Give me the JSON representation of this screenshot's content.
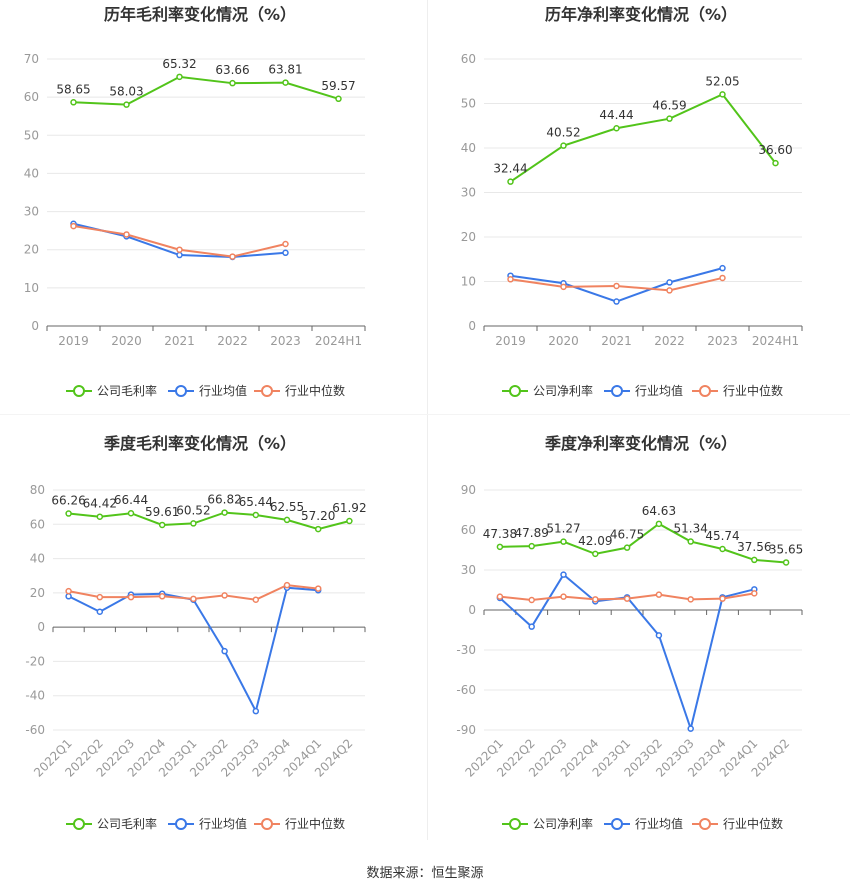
{
  "source": "数据来源：恒生聚源",
  "colors": {
    "company": "#52c41a",
    "avg": "#3a78e7",
    "median": "#f08360",
    "grid": "#e8e8e8",
    "axis": "#666666",
    "tick": "#999999"
  },
  "chart_data": [
    {
      "type": "line",
      "title": "历年毛利率变化情况（%）",
      "categories": [
        "2019",
        "2020",
        "2021",
        "2022",
        "2023",
        "2024H1"
      ],
      "ylim": [
        0,
        70
      ],
      "yticks": [
        0,
        10,
        20,
        30,
        40,
        50,
        60,
        70
      ],
      "legend_position": "bottom",
      "series": [
        {
          "name": "公司毛利率",
          "values": [
            58.65,
            58.03,
            65.32,
            63.66,
            63.81,
            59.57
          ],
          "labels": [
            "58.65",
            "58.03",
            "65.32",
            "63.66",
            "63.81",
            "59.57"
          ]
        },
        {
          "name": "行业均值",
          "values": [
            26.8,
            23.5,
            18.6,
            18.1,
            19.2,
            null
          ]
        },
        {
          "name": "行业中位数",
          "values": [
            26.2,
            24.0,
            20.0,
            18.2,
            21.5,
            null
          ]
        }
      ]
    },
    {
      "type": "line",
      "title": "历年净利率变化情况（%）",
      "categories": [
        "2019",
        "2020",
        "2021",
        "2022",
        "2023",
        "2024H1"
      ],
      "ylim": [
        0,
        60
      ],
      "yticks": [
        0,
        10,
        20,
        30,
        40,
        50,
        60
      ],
      "legend_position": "bottom",
      "series": [
        {
          "name": "公司净利率",
          "values": [
            32.44,
            40.52,
            44.44,
            46.59,
            52.05,
            36.6
          ],
          "labels": [
            "32.44",
            "40.52",
            "44.44",
            "46.59",
            "52.05",
            "36.60"
          ]
        },
        {
          "name": "行业均值",
          "values": [
            11.3,
            9.6,
            5.5,
            9.8,
            13.0,
            null
          ]
        },
        {
          "name": "行业中位数",
          "values": [
            10.5,
            8.8,
            9.0,
            8.0,
            10.8,
            null
          ]
        }
      ]
    },
    {
      "type": "line",
      "title": "季度毛利率变化情况（%）",
      "categories": [
        "2022Q1",
        "2022Q2",
        "2022Q3",
        "2022Q4",
        "2023Q1",
        "2023Q2",
        "2023Q3",
        "2023Q4",
        "2024Q1",
        "2024Q2"
      ],
      "ylim": [
        -60,
        80
      ],
      "yticks": [
        -60,
        -40,
        -20,
        0,
        20,
        40,
        60,
        80
      ],
      "legend_position": "bottom",
      "series": [
        {
          "name": "公司毛利率",
          "values": [
            66.26,
            64.42,
            66.44,
            59.61,
            60.52,
            66.82,
            65.44,
            62.55,
            57.2,
            61.92
          ],
          "labels": [
            "66.26",
            "64.42",
            "66.44",
            "59.61",
            "60.52",
            "66.82",
            "65.44",
            "62.55",
            "57.20",
            "61.92"
          ]
        },
        {
          "name": "行业均值",
          "values": [
            18.0,
            9.0,
            19.0,
            19.5,
            16.0,
            -14.0,
            -49.0,
            23.0,
            21.5,
            null
          ]
        },
        {
          "name": "行业中位数",
          "values": [
            21.0,
            17.5,
            17.5,
            18.0,
            16.5,
            18.5,
            16.0,
            24.5,
            22.5,
            null
          ]
        }
      ]
    },
    {
      "type": "line",
      "title": "季度净利率变化情况（%）",
      "categories": [
        "2022Q1",
        "2022Q2",
        "2022Q3",
        "2022Q4",
        "2023Q1",
        "2023Q2",
        "2023Q3",
        "2023Q4",
        "2024Q1",
        "2024Q2"
      ],
      "ylim": [
        -90,
        90
      ],
      "yticks": [
        -90,
        -60,
        -30,
        0,
        30,
        60,
        90
      ],
      "legend_position": "bottom",
      "series": [
        {
          "name": "公司净利率",
          "values": [
            47.38,
            47.89,
            51.27,
            42.09,
            46.75,
            64.63,
            51.34,
            45.74,
            37.56,
            35.65
          ],
          "labels": [
            "47.38",
            "47.89",
            "51.27",
            "42.09",
            "46.75",
            "64.63",
            "51.34",
            "45.74",
            "37.56",
            "35.65"
          ]
        },
        {
          "name": "行业均值",
          "values": [
            9.0,
            -12.5,
            26.5,
            6.5,
            9.5,
            -19.0,
            -89.0,
            9.5,
            15.5,
            null
          ]
        },
        {
          "name": "行业中位数",
          "values": [
            10.0,
            7.5,
            10.0,
            8.0,
            8.5,
            11.5,
            8.0,
            8.5,
            12.5,
            null
          ]
        }
      ]
    }
  ]
}
